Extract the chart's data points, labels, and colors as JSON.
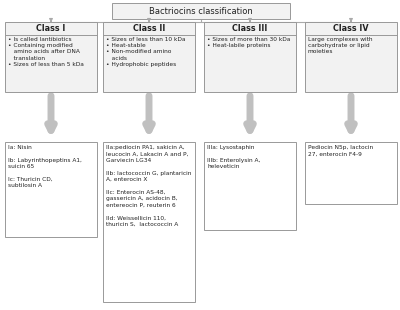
{
  "title": "Bactriocins classification",
  "bg_color": "#ffffff",
  "box_fc": "#f2f2f2",
  "box_ec": "#999999",
  "text_color": "#222222",
  "arrow_color": "#aaaaaa",
  "classes": [
    "Class I",
    "Class II",
    "Class III",
    "Class IV"
  ],
  "class_descs": [
    "• Is called lantibiotics\n• Containing modified\n   amino acids after DNA\n   translation\n• Sizes of less than 5 kDa",
    "• Sizes of less than 10 kDa\n• Heat-stable\n• Non-modified amino\n   acids\n• Hydrophobic peptides",
    "• Sizes of more than 30 kDa\n• Heat-labile proteins",
    "Large complexes with\ncarbohydrate or lipid\nmoieties"
  ],
  "sub_texts": [
    "Ia: Nisin\n\nIb: Labyrinthopeptins A1,\nsuicin 65\n\nIc: Thuricin CD,\nsubtilosin A",
    "IIa:pediocin PA1, sakicin A,\nleucocin A, Lakacin A and P,\nGarviecin LG34\n\nIIb: lactococcin G, plantaricin\nA, enterocin X\n\nIIc: Enterocin AS-48,\ngassericin A, acidocin B,\nentereocin P, reuterin 6\n\nIId: Weissellicin 110,\nthuricin S,  lactococcin A",
    "IIIa: Lysostaphin\n\nIIIb: Enterolysin A,\nheleveticin",
    "Pediocin N5p, lactocin\n27, enterocin F4-9"
  ],
  "fig_width": 4.0,
  "fig_height": 3.1,
  "dpi": 100
}
